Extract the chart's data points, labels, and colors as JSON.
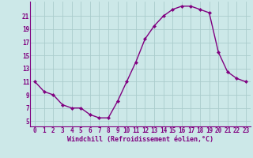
{
  "x": [
    0,
    1,
    2,
    3,
    4,
    5,
    6,
    7,
    8,
    9,
    10,
    11,
    12,
    13,
    14,
    15,
    16,
    17,
    18,
    19,
    20,
    21,
    22,
    23
  ],
  "y": [
    11,
    9.5,
    9,
    7.5,
    7,
    7,
    6,
    5.5,
    5.5,
    8,
    11,
    14,
    17.5,
    19.5,
    21,
    22,
    22.5,
    22.5,
    22,
    21.5,
    15.5,
    12.5,
    11.5,
    11
  ],
  "line_color": "#800080",
  "marker": "D",
  "marker_size": 2.2,
  "bg_color": "#cce8e8",
  "grid_color": "#aacccc",
  "xlabel": "Windchill (Refroidissement éolien,°C)",
  "xlabel_color": "#800080",
  "xlabel_fontsize": 6.0,
  "tick_color": "#800080",
  "tick_fontsize": 5.5,
  "yticks": [
    5,
    7,
    9,
    11,
    13,
    15,
    17,
    19,
    21
  ],
  "xticks": [
    0,
    1,
    2,
    3,
    4,
    5,
    6,
    7,
    8,
    9,
    10,
    11,
    12,
    13,
    14,
    15,
    16,
    17,
    18,
    19,
    20,
    21,
    22,
    23
  ],
  "ylim": [
    4.2,
    23.2
  ],
  "xlim": [
    -0.5,
    23.5
  ],
  "line_width": 1.0,
  "spine_color": "#800080"
}
